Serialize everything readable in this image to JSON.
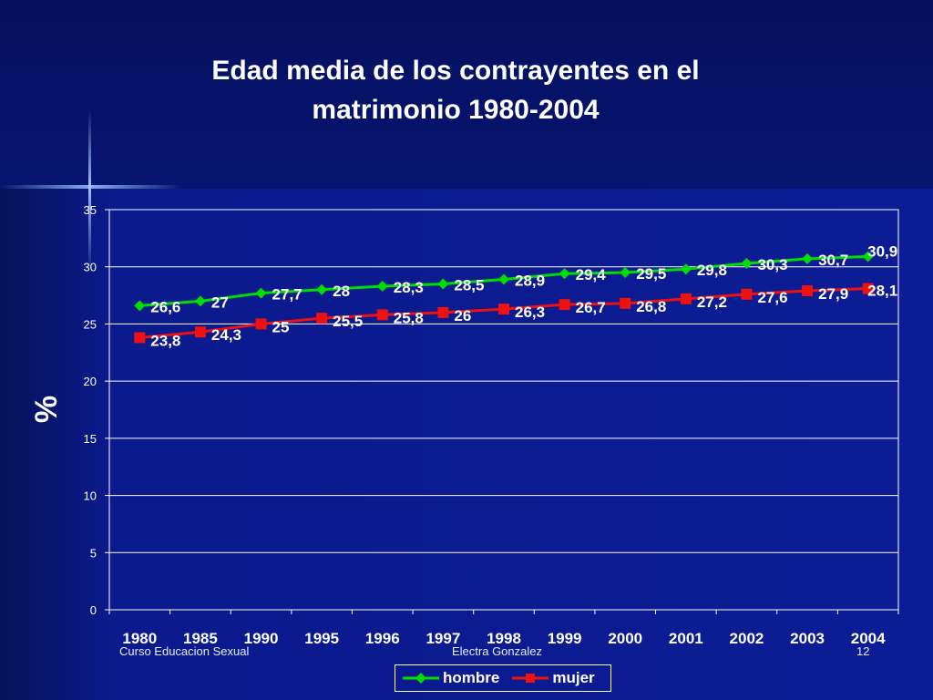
{
  "slide": {
    "title": "Edad media de los contrayentes en el matrimonio 1980-2004",
    "footer_left": "Curso Educacion Sexual",
    "footer_center": "Electra Gonzalez",
    "footer_right": "12"
  },
  "colors": {
    "hombre": "#00dd00",
    "mujer": "#ee1111",
    "grid": "#ffffff",
    "text": "#ffffff"
  },
  "chart_data": {
    "type": "line",
    "title": "Edad media de los contrayentes en el matrimonio 1980-2004",
    "ylabel": "%",
    "xlabel": "",
    "ylim": [
      0,
      35
    ],
    "yticks": [
      0,
      5,
      10,
      15,
      20,
      25,
      30,
      35
    ],
    "grid": true,
    "legend_position": "bottom",
    "categories": [
      "1980",
      "1985",
      "1990",
      "1995",
      "1996",
      "1997",
      "1998",
      "1999",
      "2000",
      "2001",
      "2002",
      "2003",
      "2004"
    ],
    "series": [
      {
        "name": "hombre",
        "values": [
          26.6,
          27,
          27.7,
          28,
          28.3,
          28.5,
          28.9,
          29.4,
          29.5,
          29.8,
          30.3,
          30.7,
          30.9
        ],
        "labels": [
          "26,6",
          "27",
          "27,7",
          "28",
          "28,3",
          "28,5",
          "28,9",
          "29,4",
          "29,5",
          "29,8",
          "30,3",
          "30,7",
          "30,9"
        ]
      },
      {
        "name": "mujer",
        "values": [
          23.8,
          24.3,
          25,
          25.5,
          25.8,
          26,
          26.3,
          26.7,
          26.8,
          27.2,
          27.6,
          27.9,
          28.1
        ],
        "labels": [
          "23,8",
          "24,3",
          "25",
          "25,5",
          "25,8",
          "26",
          "26,3",
          "26,7",
          "26,8",
          "27,2",
          "27,6",
          "27,9",
          "28,1"
        ]
      }
    ]
  }
}
